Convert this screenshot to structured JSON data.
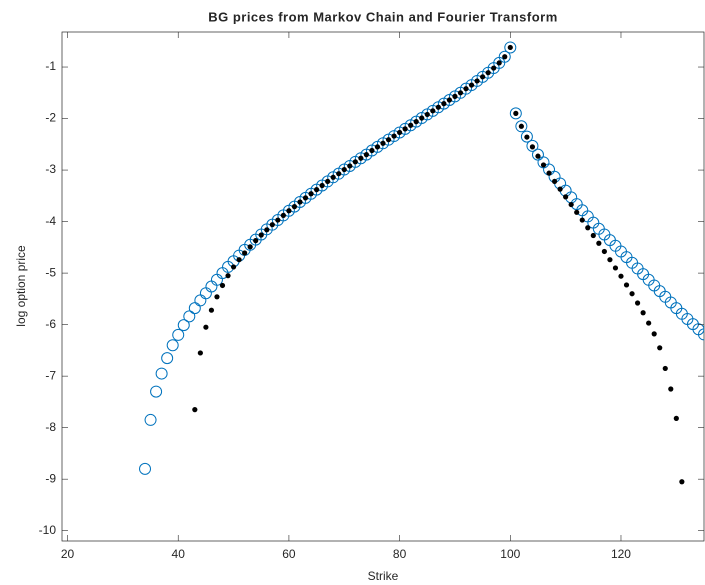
{
  "chart_data": {
    "type": "scatter",
    "title": "BG prices from Markov Chain and Fourier Transform",
    "x_label": "Strike",
    "y_label": "log option price",
    "x": [
      34,
      35,
      36,
      37,
      38,
      39,
      40,
      41,
      42,
      43,
      44,
      45,
      46,
      47,
      48,
      49,
      50,
      51,
      52,
      53,
      54,
      55,
      56,
      57,
      58,
      59,
      60,
      61,
      62,
      63,
      64,
      65,
      66,
      67,
      68,
      69,
      70,
      71,
      72,
      73,
      74,
      75,
      76,
      77,
      78,
      79,
      80,
      81,
      82,
      83,
      84,
      85,
      86,
      87,
      88,
      89,
      90,
      91,
      92,
      93,
      94,
      95,
      96,
      97,
      98,
      99,
      100,
      101,
      102,
      103,
      104,
      105,
      106,
      107,
      108,
      109,
      110,
      111,
      112,
      113,
      114,
      115,
      116,
      117,
      118,
      119,
      120,
      121,
      122,
      123,
      124,
      125,
      126,
      127,
      128,
      129,
      130,
      131,
      132,
      133,
      134,
      135
    ],
    "series": [
      {
        "marker": "o",
        "color": "#0072bd",
        "values": [
          -8.8,
          -7.85,
          -7.3,
          -6.95,
          -6.65,
          -6.4,
          -6.2,
          -6.01,
          -5.84,
          -5.68,
          -5.53,
          -5.39,
          -5.26,
          -5.13,
          -5.0,
          -4.88,
          -4.77,
          -4.66,
          -4.55,
          -4.45,
          -4.35,
          -4.25,
          -4.15,
          -4.06,
          -3.97,
          -3.88,
          -3.79,
          -3.71,
          -3.62,
          -3.54,
          -3.46,
          -3.38,
          -3.3,
          -3.22,
          -3.14,
          -3.07,
          -2.99,
          -2.92,
          -2.84,
          -2.77,
          -2.7,
          -2.62,
          -2.55,
          -2.48,
          -2.41,
          -2.34,
          -2.27,
          -2.2,
          -2.13,
          -2.06,
          -1.99,
          -1.92,
          -1.85,
          -1.78,
          -1.71,
          -1.64,
          -1.57,
          -1.5,
          -1.42,
          -1.35,
          -1.27,
          -1.19,
          -1.11,
          -1.02,
          -0.92,
          -0.8,
          -0.62,
          -1.9,
          -2.15,
          -2.35,
          -2.53,
          -2.7,
          -2.85,
          -2.99,
          -3.13,
          -3.26,
          -3.4,
          -3.53,
          -3.66,
          -3.78,
          -3.9,
          -4.02,
          -4.14,
          -4.25,
          -4.36,
          -4.47,
          -4.58,
          -4.69,
          -4.8,
          -4.91,
          -5.02,
          -5.13,
          -5.24,
          -5.35,
          -5.46,
          -5.57,
          -5.68,
          -5.79,
          -5.89,
          -5.99,
          -6.09,
          -6.19
        ]
      },
      {
        "marker": ".",
        "color": "#000000",
        "values": [
          null,
          null,
          null,
          null,
          null,
          null,
          null,
          null,
          null,
          -7.65,
          -6.55,
          -6.05,
          -5.72,
          -5.46,
          -5.24,
          -5.05,
          -4.88,
          -4.74,
          -4.61,
          -4.49,
          -4.37,
          -4.26,
          -4.16,
          -4.06,
          -3.97,
          -3.88,
          -3.79,
          -3.71,
          -3.62,
          -3.54,
          -3.46,
          -3.38,
          -3.3,
          -3.22,
          -3.14,
          -3.07,
          -2.99,
          -2.92,
          -2.84,
          -2.77,
          -2.7,
          -2.62,
          -2.55,
          -2.48,
          -2.41,
          -2.34,
          -2.27,
          -2.2,
          -2.13,
          -2.06,
          -1.99,
          -1.92,
          -1.85,
          -1.78,
          -1.71,
          -1.64,
          -1.57,
          -1.5,
          -1.42,
          -1.35,
          -1.27,
          -1.19,
          -1.11,
          -1.02,
          -0.92,
          -0.8,
          -0.62,
          -1.9,
          -2.15,
          -2.36,
          -2.55,
          -2.73,
          -2.9,
          -3.06,
          -3.22,
          -3.37,
          -3.52,
          -3.67,
          -3.82,
          -3.97,
          -4.12,
          -4.27,
          -4.42,
          -4.58,
          -4.74,
          -4.9,
          -5.06,
          -5.23,
          -5.4,
          -5.58,
          -5.77,
          -5.97,
          -6.18,
          -6.45,
          -6.85,
          -7.25,
          -7.82,
          -9.05,
          null,
          null,
          null,
          null
        ]
      }
    ],
    "xlim": [
      19,
      135
    ],
    "ylim": [
      -10.2,
      -0.32
    ],
    "xticks": [
      20,
      40,
      60,
      80,
      100,
      120
    ],
    "yticks": [
      -10,
      -9,
      -8,
      -7,
      -6,
      -5,
      -4,
      -3,
      -2,
      -1
    ]
  }
}
